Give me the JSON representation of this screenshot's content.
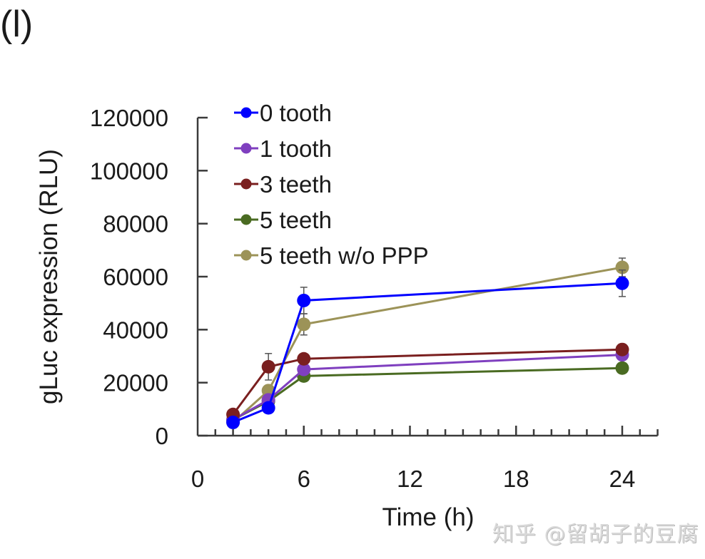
{
  "panel_label": "(l)",
  "watermark": "知乎 @留胡子的豆腐",
  "chart_data": {
    "type": "line",
    "title": "",
    "xlabel": "Time (h)",
    "ylabel": "gLuc expression (RLU)",
    "xlim": [
      0,
      26
    ],
    "ylim": [
      0,
      120000
    ],
    "x_ticks": [
      0,
      6,
      12,
      18,
      24
    ],
    "x_minor_tick_step": 1,
    "y_ticks": [
      0,
      20000,
      40000,
      60000,
      80000,
      100000,
      120000
    ],
    "grid": false,
    "legend_position": "upper-left",
    "x": [
      2,
      4,
      6,
      24
    ],
    "series": [
      {
        "name": "0 tooth",
        "color": "#0000ff",
        "values": [
          5000,
          10500,
          51000,
          57500
        ],
        "errors": [
          500,
          1000,
          5000,
          5000
        ]
      },
      {
        "name": "1 tooth",
        "color": "#7f3fbf",
        "values": [
          6000,
          13500,
          25000,
          30500
        ],
        "errors": [
          500,
          1000,
          1500,
          1500
        ]
      },
      {
        "name": "3 teeth",
        "color": "#7a1f1f",
        "values": [
          8000,
          26000,
          29000,
          32500
        ],
        "errors": [
          500,
          5000,
          1500,
          1500
        ]
      },
      {
        "name": "5 teeth",
        "color": "#4a6b22",
        "values": [
          6000,
          13000,
          22500,
          25500
        ],
        "errors": [
          500,
          1000,
          1000,
          1000
        ]
      },
      {
        "name": "5 teeth w/o PPP",
        "color": "#9c9358",
        "values": [
          5000,
          17000,
          42000,
          63500
        ],
        "errors": [
          500,
          1500,
          4000,
          3500
        ]
      }
    ]
  }
}
